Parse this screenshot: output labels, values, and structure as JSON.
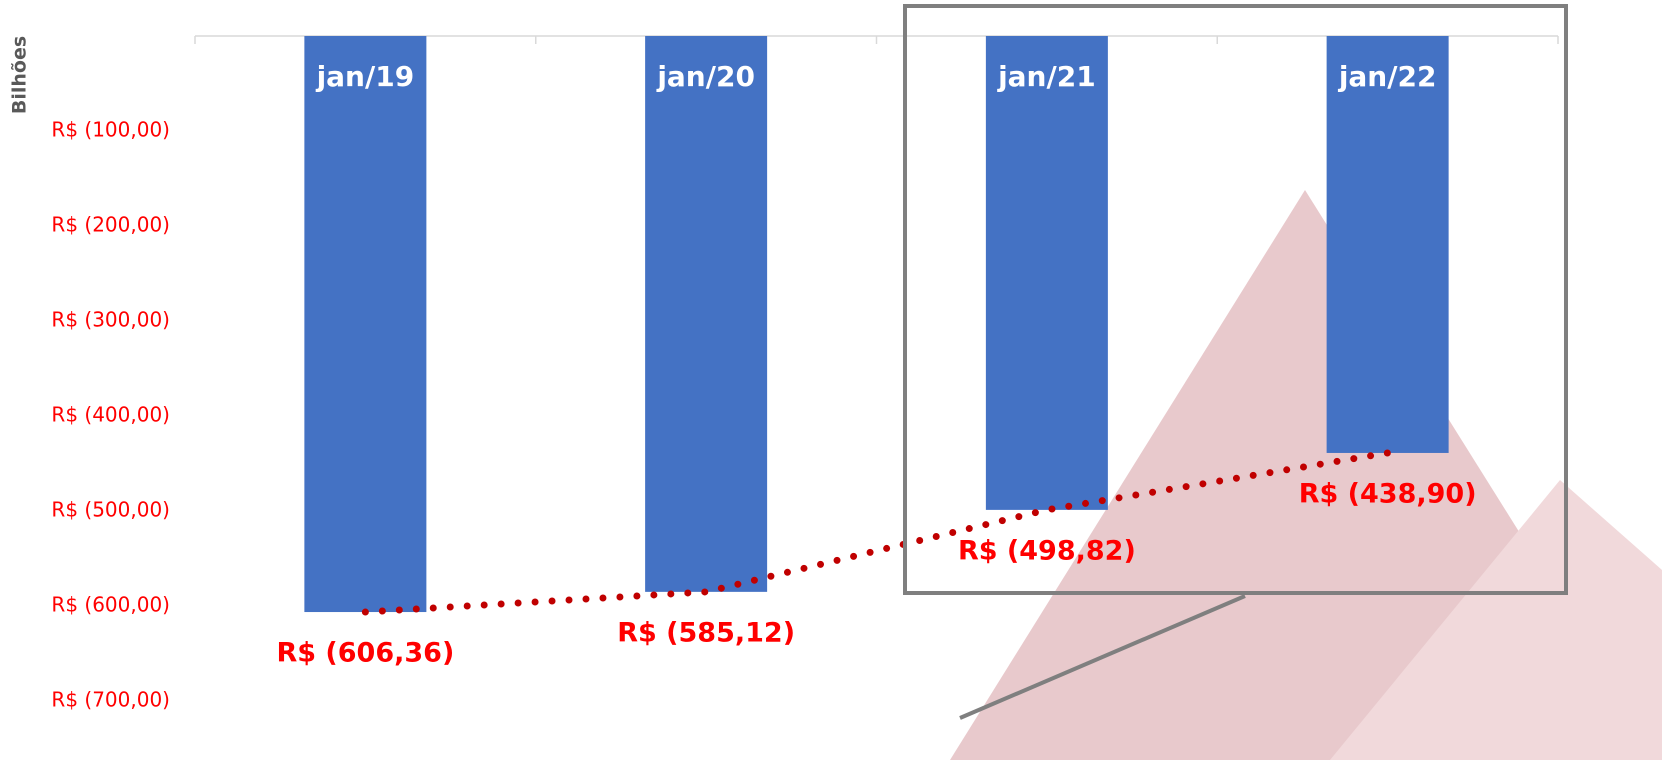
{
  "chart_data": {
    "type": "bar",
    "y_axis_title": "Bilhões",
    "categories": [
      "jan/19",
      "jan/20",
      "jan/21",
      "jan/22"
    ],
    "values": [
      -606.36,
      -585.12,
      -498.82,
      -438.9
    ],
    "value_labels": [
      "R$ (606,36)",
      "R$ (585,12)",
      "R$ (498,82)",
      "R$ (438,90)"
    ],
    "color": "#4472c4",
    "trend_color": "#c00000",
    "ylim": [
      -700,
      0
    ],
    "yticks": [
      {
        "value": -100,
        "label": "R$ (100,00)"
      },
      {
        "value": -200,
        "label": "R$ (200,00)"
      },
      {
        "value": -300,
        "label": "R$ (300,00)"
      },
      {
        "value": -400,
        "label": "R$ (400,00)"
      },
      {
        "value": -500,
        "label": "R$ (500,00)"
      },
      {
        "value": -600,
        "label": "R$ (600,00)"
      },
      {
        "value": -700,
        "label": "R$ (700,00)"
      }
    ],
    "grid": false
  }
}
